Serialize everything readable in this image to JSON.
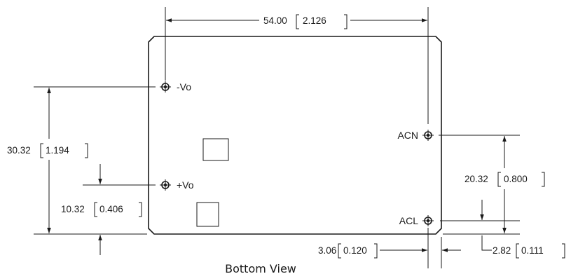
{
  "caption": "Bottom View",
  "pins": {
    "neg_vo": "-Vo",
    "pos_vo": "+Vo",
    "acn": "ACN",
    "acl": "ACL"
  },
  "dimensions": {
    "width": {
      "mm": "54.00",
      "inch": "2.126"
    },
    "vo_spacing": {
      "mm": "30.32",
      "inch": "1.194"
    },
    "pos_vo_offset": {
      "mm": "10.32",
      "inch": "0.406"
    },
    "ac_spacing": {
      "mm": "20.32",
      "inch": "0.800"
    },
    "acn_edge": {
      "mm": "3.06",
      "inch": "0.120"
    },
    "acl_edge": {
      "mm": "2.82",
      "inch": "0.111"
    }
  },
  "colors": {
    "ink": "#1a1a1a",
    "background": "#ffffff"
  }
}
